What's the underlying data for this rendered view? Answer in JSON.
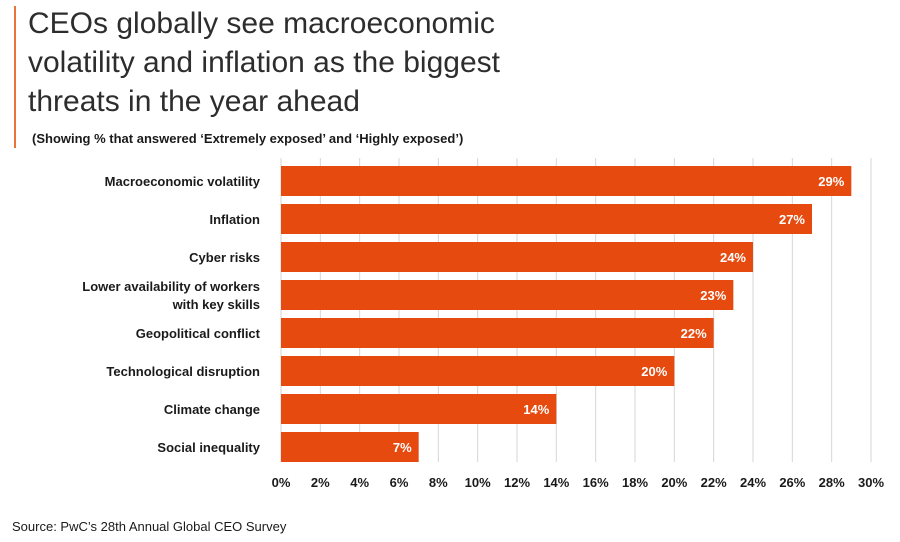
{
  "header": {
    "title": "CEOs globally see macroeconomic volatility and inflation as the biggest threats in the year ahead",
    "subtitle": "(Showing % that answered ‘Extremely exposed’ and ‘Highly exposed’)"
  },
  "footer": {
    "source": "Source: PwC’s 28th Annual Global CEO Survey"
  },
  "colors": {
    "bar": "#e64a0f",
    "accent_rule": "#e8743b"
  },
  "chart_data": {
    "type": "bar",
    "orientation": "horizontal",
    "title": "CEOs globally see macroeconomic volatility and inflation as the biggest threats in the year ahead",
    "subtitle": "(Showing % that answered ‘Extremely exposed’ and ‘Highly exposed’)",
    "categories": [
      [
        "Macroeconomic volatility"
      ],
      [
        "Inflation"
      ],
      [
        "Cyber risks"
      ],
      [
        "Lower availability of workers",
        "with key skills"
      ],
      [
        "Geopolitical conflict"
      ],
      [
        "Technological disruption"
      ],
      [
        "Climate change"
      ],
      [
        "Social inequality"
      ]
    ],
    "values": [
      29,
      27,
      24,
      23,
      22,
      20,
      14,
      7
    ],
    "value_labels": [
      "29%",
      "27%",
      "24%",
      "23%",
      "22%",
      "20%",
      "14%",
      "7%"
    ],
    "xlim": [
      0,
      30
    ],
    "xticks": [
      0,
      2,
      4,
      6,
      8,
      10,
      12,
      14,
      16,
      18,
      20,
      22,
      24,
      26,
      28,
      30
    ],
    "xtick_labels": [
      "0%",
      "2%",
      "4%",
      "6%",
      "8%",
      "10%",
      "12%",
      "14%",
      "16%",
      "18%",
      "20%",
      "22%",
      "24%",
      "26%",
      "28%",
      "30%"
    ],
    "xlabel": "",
    "ylabel": "",
    "grid": true
  }
}
